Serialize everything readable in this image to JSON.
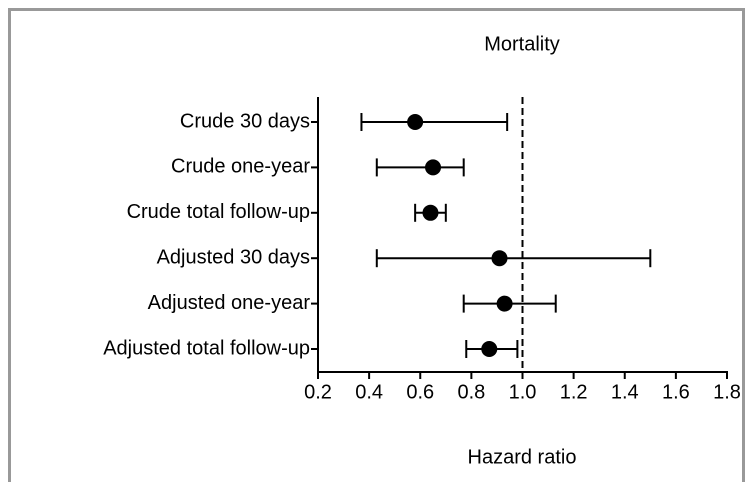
{
  "chart_data": {
    "type": "forest",
    "title": "Mortality",
    "x_label": "Hazard ratio",
    "categories": [
      "Crude 30 days",
      "Crude one-year",
      "Crude total follow-up",
      "Adjusted 30 days",
      "Adjusted one-year",
      "Adjusted total follow-up"
    ],
    "values": [
      0.58,
      0.65,
      0.64,
      0.91,
      0.93,
      0.87
    ],
    "lower": [
      0.37,
      0.43,
      0.58,
      0.43,
      0.77,
      0.78
    ],
    "upper": [
      0.94,
      0.77,
      0.7,
      1.5,
      1.13,
      0.98
    ],
    "color": "#000000",
    "reference_line": 1,
    "xlim": [
      0.2,
      1.8
    ],
    "xticks": [
      0.2,
      0.4,
      0.6,
      0.8,
      {
        "value": 1,
        "label": "1.0"
      },
      1.2,
      1.4,
      1.6,
      1.8
    ]
  }
}
